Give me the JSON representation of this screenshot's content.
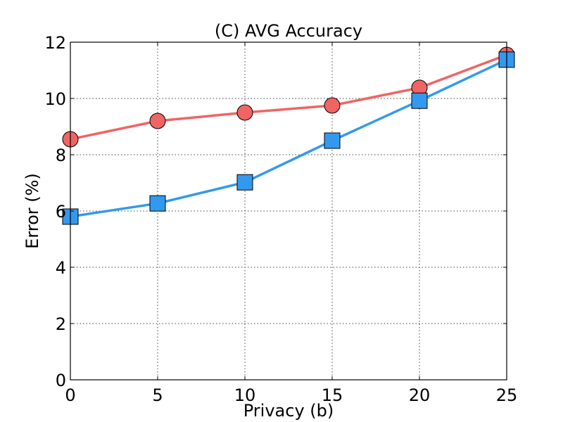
{
  "chart_data": {
    "type": "line",
    "title": "(C) AVG Accuracy",
    "xlabel": "Privacy (b)",
    "ylabel": "Error (%)",
    "xlim": [
      0,
      25
    ],
    "ylim": [
      0,
      12
    ],
    "x_ticks": [
      "0",
      "5",
      "10",
      "15",
      "20",
      "25"
    ],
    "y_ticks": [
      "0",
      "2",
      "4",
      "6",
      "8",
      "10",
      "12"
    ],
    "grid": true,
    "x": [
      0,
      5,
      10,
      15,
      20,
      25
    ],
    "series": [
      {
        "values": [
          8.55,
          9.2,
          9.5,
          9.75,
          10.38,
          11.55
        ],
        "color": "#f06464",
        "marker": "circle"
      },
      {
        "values": [
          5.8,
          6.27,
          7.02,
          8.5,
          9.92,
          11.38
        ],
        "color": "#3399ee",
        "marker": "square"
      }
    ]
  }
}
